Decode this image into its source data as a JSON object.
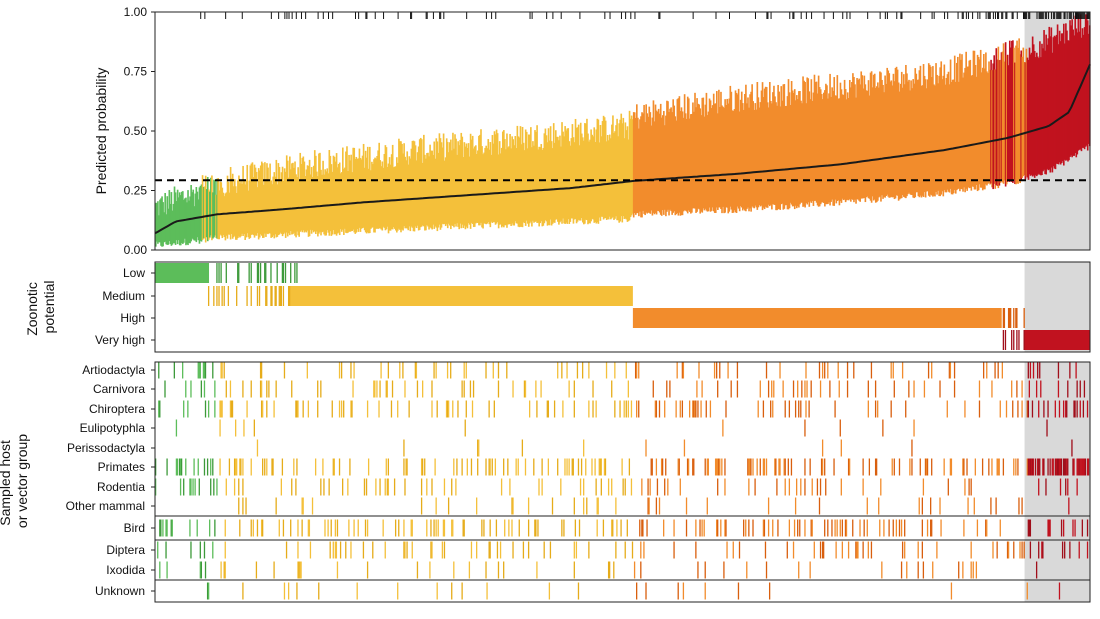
{
  "chart_data": {
    "type": "composite",
    "x_count": 900,
    "shade_start_index": 837,
    "colors": {
      "Low": "#5cbd5a",
      "Medium": "#f4c03a",
      "High": "#f28c2c",
      "Very high": "#c1121f",
      "Low_dark": "#3d9a3a",
      "Medium_dark": "#e6ac1a",
      "High_dark": "#d95f0e",
      "Very_high_dark": "#a00e1a",
      "mean_line": "#1a1a1a",
      "threshold_line": "#000000",
      "shade": "#d9d9d9"
    },
    "top_panel": {
      "ylabel": "Predicted probability",
      "ylim": [
        0,
        1
      ],
      "yticks": [
        "0.00",
        "0.25",
        "0.50",
        "0.75",
        "1.00"
      ],
      "threshold": 0.293,
      "mean_curve": [
        [
          0,
          0.07
        ],
        [
          20,
          0.12
        ],
        [
          60,
          0.15
        ],
        [
          120,
          0.17
        ],
        [
          200,
          0.2
        ],
        [
          300,
          0.23
        ],
        [
          400,
          0.26
        ],
        [
          460,
          0.29
        ],
        [
          560,
          0.32
        ],
        [
          660,
          0.36
        ],
        [
          760,
          0.42
        ],
        [
          820,
          0.47
        ],
        [
          860,
          0.52
        ],
        [
          880,
          0.58
        ],
        [
          900,
          0.78
        ]
      ],
      "upper_curve": [
        [
          0,
          0.18
        ],
        [
          60,
          0.28
        ],
        [
          150,
          0.36
        ],
        [
          250,
          0.42
        ],
        [
          350,
          0.47
        ],
        [
          455,
          0.52
        ],
        [
          460,
          0.56
        ],
        [
          560,
          0.64
        ],
        [
          660,
          0.69
        ],
        [
          760,
          0.75
        ],
        [
          820,
          0.82
        ],
        [
          860,
          0.88
        ],
        [
          900,
          0.97
        ]
      ],
      "lower_curve": [
        [
          0,
          0.02
        ],
        [
          60,
          0.05
        ],
        [
          150,
          0.07
        ],
        [
          250,
          0.09
        ],
        [
          350,
          0.11
        ],
        [
          455,
          0.13
        ],
        [
          460,
          0.15
        ],
        [
          560,
          0.17
        ],
        [
          660,
          0.2
        ],
        [
          760,
          0.24
        ],
        [
          820,
          0.28
        ],
        [
          860,
          0.33
        ],
        [
          900,
          0.44
        ]
      ],
      "band_segments": [
        {
          "from": 0,
          "to": 60,
          "category": "Low"
        },
        {
          "from": 60,
          "to": 460,
          "category": "Medium"
        },
        {
          "from": 460,
          "to": 840,
          "category": "High"
        },
        {
          "from": 840,
          "to": 900,
          "category": "Very high"
        }
      ],
      "rug_density": [
        [
          0,
          0.0
        ],
        [
          40,
          0.05
        ],
        [
          120,
          0.12
        ],
        [
          200,
          0.1
        ],
        [
          300,
          0.08
        ],
        [
          380,
          0.06
        ],
        [
          460,
          0.1
        ],
        [
          560,
          0.12
        ],
        [
          680,
          0.15
        ],
        [
          760,
          0.25
        ],
        [
          820,
          0.45
        ],
        [
          860,
          0.7
        ],
        [
          900,
          0.95
        ]
      ]
    },
    "zonotic_panel": {
      "ylabel": "Zoonotic potential",
      "categories": [
        "Low",
        "Medium",
        "High",
        "Very high"
      ],
      "solid_spans": [
        {
          "category": "Low",
          "from": 0,
          "to": 52
        },
        {
          "category": "Medium",
          "from": 130,
          "to": 460
        },
        {
          "category": "High",
          "from": 460,
          "to": 815
        },
        {
          "category": "Very high",
          "from": 837,
          "to": 900
        }
      ],
      "scatter_spans": [
        {
          "category": "Low",
          "from": 52,
          "to": 140,
          "density": 0.25
        },
        {
          "category": "Medium",
          "from": 50,
          "to": 130,
          "density": 0.35
        },
        {
          "category": "High",
          "from": 815,
          "to": 837,
          "density": 0.5
        },
        {
          "category": "Very high",
          "from": 815,
          "to": 837,
          "density": 0.45
        }
      ]
    },
    "host_panel": {
      "ylabel": "Sampled host or vector group",
      "groups": [
        [
          "Artiodactyla",
          "Carnivora",
          "Chiroptera",
          "Eulipotyphla",
          "Perissodactyla",
          "Primates",
          "Rodentia",
          "Other mammal"
        ],
        [
          "Bird"
        ],
        [
          "Diptera",
          "Ixodida"
        ],
        [
          "Unknown"
        ]
      ],
      "density": {
        "Artiodactyla": 0.1,
        "Carnivora": 0.08,
        "Chiroptera": 0.12,
        "Eulipotyphla": 0.015,
        "Perissodactyla": 0.02,
        "Primates": 0.18,
        "Rodentia": 0.09,
        "Other mammal": 0.04,
        "Bird": 0.17,
        "Diptera": 0.09,
        "Ixodida": 0.04,
        "Unknown": 0.03
      }
    }
  }
}
